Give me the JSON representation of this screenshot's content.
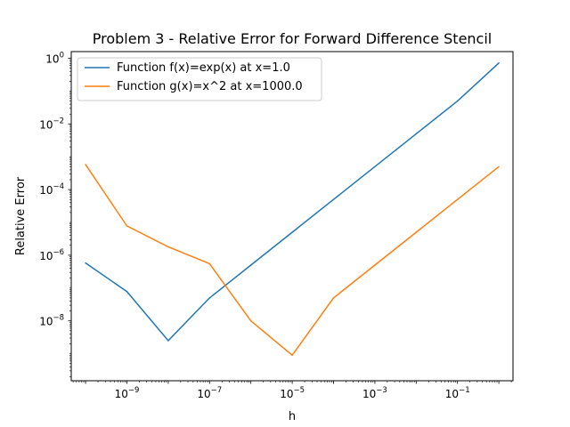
{
  "chart_data": {
    "type": "line",
    "title": "Problem 3 - Relative Error for Forward Difference Stencil",
    "xlabel": "h",
    "ylabel": "Relative Error",
    "xscale": "log",
    "yscale": "log",
    "xlim": [
      4.5e-11,
      2.2
    ],
    "ylim": [
      1.5e-10,
      1.6
    ],
    "xticks": [
      {
        "value": 1e-09,
        "base": "10",
        "exp": "−9"
      },
      {
        "value": 1e-07,
        "base": "10",
        "exp": "−7"
      },
      {
        "value": 1e-05,
        "base": "10",
        "exp": "−5"
      },
      {
        "value": 0.001,
        "base": "10",
        "exp": "−3"
      },
      {
        "value": 0.1,
        "base": "10",
        "exp": "−1"
      }
    ],
    "yticks": [
      {
        "value": 1e-08,
        "base": "10",
        "exp": "−8"
      },
      {
        "value": 1e-06,
        "base": "10",
        "exp": "−6"
      },
      {
        "value": 0.0001,
        "base": "10",
        "exp": "−4"
      },
      {
        "value": 0.01,
        "base": "10",
        "exp": "−2"
      },
      {
        "value": 1,
        "base": "10",
        "exp": "0"
      }
    ],
    "grid": false,
    "legend_position": "top-left",
    "x": [
      1e-10,
      1e-09,
      1e-08,
      1e-07,
      1e-06,
      1e-05,
      0.0001,
      0.001,
      0.01,
      0.1,
      1
    ],
    "series": [
      {
        "name": "Function f(x)=exp(x) at x=1.0",
        "color": "#1f77b4",
        "values": [
          5.8e-07,
          7.8e-08,
          2.5e-09,
          5e-08,
          5e-07,
          5e-06,
          5e-05,
          0.0005,
          0.005,
          0.05,
          0.72
        ]
      },
      {
        "name": "Function g(x)=x^2 at x=1000.0",
        "color": "#ff7f0e",
        "values": [
          0.00058,
          7.8e-06,
          1.8e-06,
          5.5e-07,
          1e-08,
          9e-10,
          5e-08,
          5e-07,
          5e-06,
          5e-05,
          0.0005
        ]
      }
    ]
  }
}
